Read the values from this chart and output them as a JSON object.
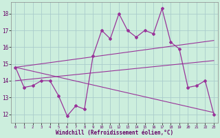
{
  "xlabel": "Windchill (Refroidissement éolien,°C)",
  "x": [
    0,
    1,
    2,
    3,
    4,
    5,
    6,
    7,
    8,
    9,
    10,
    11,
    12,
    13,
    14,
    15,
    16,
    17,
    18,
    19,
    20,
    21,
    22,
    23
  ],
  "y_main": [
    14.8,
    13.6,
    13.7,
    14.0,
    14.0,
    13.1,
    11.9,
    12.5,
    12.3,
    15.5,
    17.0,
    16.5,
    18.0,
    17.0,
    16.6,
    17.0,
    16.8,
    18.3,
    16.3,
    15.9,
    13.6,
    13.7,
    14.0,
    12.0
  ],
  "y_line1_start": 14.8,
  "y_line1_end": 16.4,
  "y_line2_start": 14.0,
  "y_line2_end": 15.2,
  "y_line3_start": 14.8,
  "y_line3_end": 12.1,
  "x_start": 0,
  "x_end": 23,
  "line_color": "#993399",
  "bg_color": "#cceedd",
  "grid_color": "#aacccc",
  "ylim": [
    11.5,
    18.7
  ],
  "xlim": [
    -0.5,
    23.5
  ],
  "yticks": [
    12,
    13,
    14,
    15,
    16,
    17,
    18
  ],
  "xticks": [
    0,
    1,
    2,
    3,
    4,
    5,
    6,
    7,
    8,
    9,
    10,
    11,
    12,
    13,
    14,
    15,
    16,
    17,
    18,
    19,
    20,
    21,
    22,
    23
  ]
}
